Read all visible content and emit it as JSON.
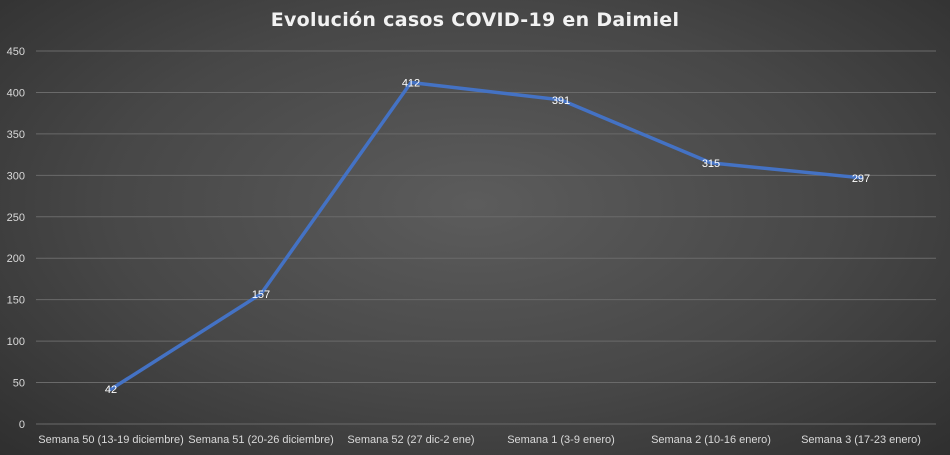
{
  "chart_data": {
    "type": "line",
    "title": "Evolución casos COVID-19 en Daimiel",
    "xlabel": "",
    "ylabel": "",
    "categories": [
      "Semana 50 (13-19 diciembre)",
      "Semana 51 (20-26 diciembre)",
      "Semana 52 (27 dic-2 ene)",
      "Semana 1 (3-9 enero)",
      "Semana 2 (10-16 enero)",
      "Semana 3 (17-23 enero)"
    ],
    "series": [
      {
        "values": [
          42,
          157,
          412,
          391,
          315,
          297
        ]
      }
    ],
    "ylim": [
      0,
      450
    ],
    "yticks": [
      0,
      50,
      100,
      150,
      200,
      250,
      300,
      350,
      400,
      450
    ],
    "grid": true,
    "legend": "none",
    "colors": {
      "line": "#4472c4"
    }
  }
}
